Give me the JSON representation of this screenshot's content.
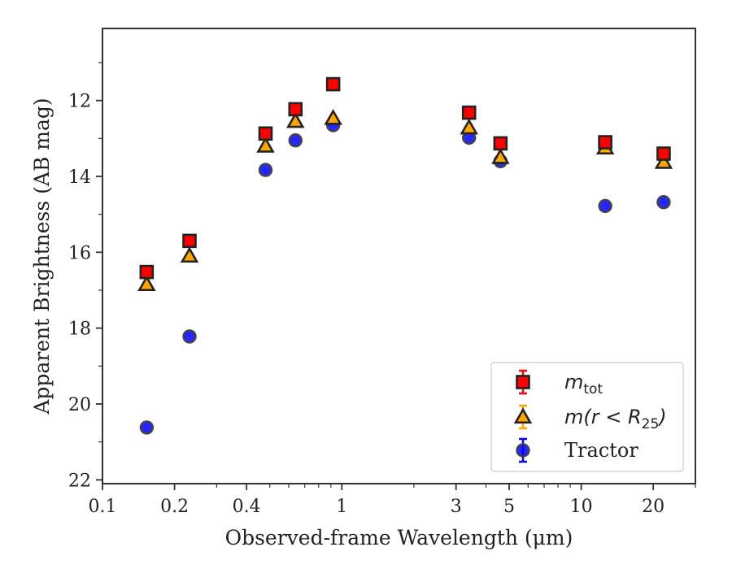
{
  "chart_data": {
    "type": "scatter",
    "title": "",
    "xlabel": "Observed-frame Wavelength (μm)",
    "ylabel": "Apparent Brightness (AB mag)",
    "xscale": "log",
    "xlim": [
      0.1,
      30
    ],
    "ylim": [
      22.1,
      10.1
    ],
    "y_inverted": true,
    "x_ticks": [
      0.1,
      0.2,
      0.4,
      1,
      3,
      5,
      10,
      20
    ],
    "x_tick_labels": [
      "0.1",
      "0.2",
      "0.4",
      "1",
      "3",
      "5",
      "10",
      "20"
    ],
    "y_ticks": [
      12,
      14,
      16,
      18,
      20,
      22
    ],
    "y_tick_labels": [
      "12",
      "14",
      "16",
      "18",
      "20",
      "22"
    ],
    "grid": false,
    "legend_position": "lower-right",
    "series": [
      {
        "name": "m_tot",
        "label_main": "m",
        "label_sub": "tot",
        "marker": "square",
        "color": "#ff0000",
        "edge_color": "#222222",
        "x": [
          0.153,
          0.231,
          0.48,
          0.64,
          0.92,
          3.4,
          4.6,
          12.6,
          22.1
        ],
        "y": [
          16.52,
          15.7,
          12.87,
          12.23,
          11.57,
          12.32,
          13.13,
          13.1,
          13.4
        ]
      },
      {
        "name": "m(r < R_25)",
        "label_main": "m(r < R",
        "label_sub": "25",
        "label_end": ")",
        "marker": "triangle",
        "color": "#ffa500",
        "edge_color": "#222222",
        "x": [
          0.153,
          0.231,
          0.48,
          0.64,
          0.92,
          3.4,
          4.6,
          12.6,
          22.1
        ],
        "y": [
          16.85,
          16.1,
          13.2,
          12.55,
          12.47,
          12.72,
          13.5,
          13.25,
          13.63
        ]
      },
      {
        "name": "Tractor",
        "marker": "circle",
        "color": "#0000ff",
        "edge_color": "#444444",
        "x": [
          0.153,
          0.231,
          0.48,
          0.64,
          0.92,
          3.4,
          4.6,
          12.6,
          22.1
        ],
        "y": [
          20.62,
          18.22,
          13.83,
          13.05,
          12.65,
          12.98,
          13.6,
          14.78,
          14.68
        ]
      }
    ]
  }
}
